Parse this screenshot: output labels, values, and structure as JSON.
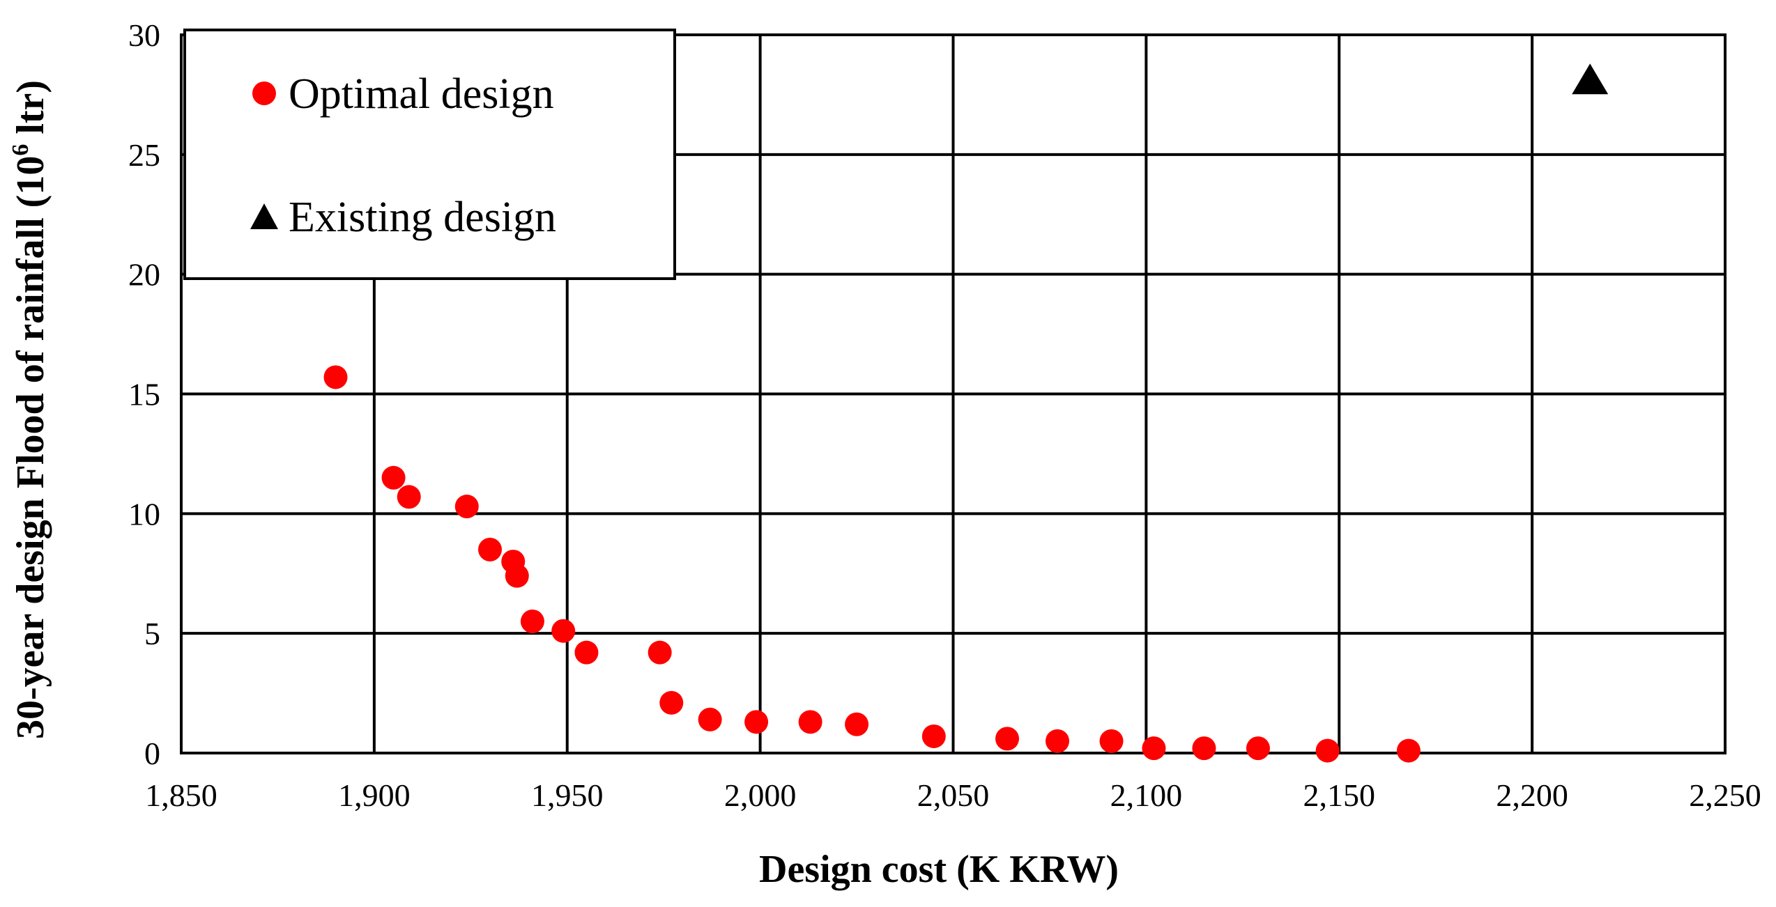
{
  "chart_data": {
    "type": "scatter",
    "title": "",
    "xlabel": "Design cost (K KRW)",
    "ylabel": {
      "prefix": "30-year design Flood of rainfall (10",
      "superscript": "6",
      "suffix": " ltr)"
    },
    "xlim": [
      1850,
      2250
    ],
    "ylim": [
      0,
      30
    ],
    "x_ticks": [
      1850,
      1900,
      1950,
      2000,
      2050,
      2100,
      2150,
      2200,
      2250
    ],
    "x_tick_labels": [
      "1,850",
      "1,900",
      "1,950",
      "2,000",
      "2,050",
      "2,100",
      "2,150",
      "2,200",
      "2,250"
    ],
    "y_ticks": [
      0,
      5,
      10,
      15,
      20,
      25,
      30
    ],
    "y_tick_labels": [
      "0",
      "5",
      "10",
      "15",
      "20",
      "25",
      "30"
    ],
    "grid": true,
    "legend_position": "top-left",
    "series": [
      {
        "name": "Optimal design",
        "marker": "circle",
        "color": "#ff0000",
        "points": [
          {
            "x": 1890,
            "y": 15.7
          },
          {
            "x": 1905,
            "y": 11.5
          },
          {
            "x": 1909,
            "y": 10.7
          },
          {
            "x": 1924,
            "y": 10.3
          },
          {
            "x": 1930,
            "y": 8.5
          },
          {
            "x": 1936,
            "y": 8.0
          },
          {
            "x": 1937,
            "y": 7.4
          },
          {
            "x": 1941,
            "y": 5.5
          },
          {
            "x": 1949,
            "y": 5.1
          },
          {
            "x": 1955,
            "y": 4.2
          },
          {
            "x": 1974,
            "y": 4.2
          },
          {
            "x": 1977,
            "y": 2.1
          },
          {
            "x": 1987,
            "y": 1.4
          },
          {
            "x": 1999,
            "y": 1.3
          },
          {
            "x": 2013,
            "y": 1.3
          },
          {
            "x": 2025,
            "y": 1.2
          },
          {
            "x": 2045,
            "y": 0.7
          },
          {
            "x": 2064,
            "y": 0.6
          },
          {
            "x": 2077,
            "y": 0.5
          },
          {
            "x": 2091,
            "y": 0.5
          },
          {
            "x": 2102,
            "y": 0.2
          },
          {
            "x": 2115,
            "y": 0.2
          },
          {
            "x": 2129,
            "y": 0.2
          },
          {
            "x": 2147,
            "y": 0.1
          },
          {
            "x": 2168,
            "y": 0.1
          }
        ]
      },
      {
        "name": "Existing design",
        "marker": "triangle",
        "color": "#000000",
        "points": [
          {
            "x": 2215,
            "y": 28.1
          }
        ]
      }
    ]
  }
}
